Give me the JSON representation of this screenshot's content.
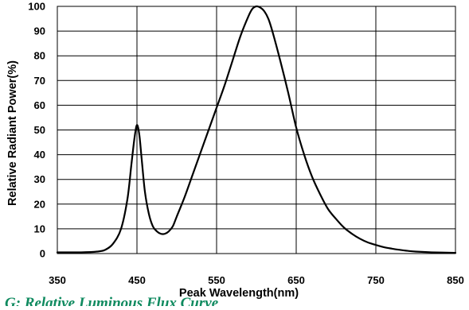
{
  "chart_data": {
    "type": "line",
    "title": "",
    "xlabel": "Peak Wavelength(nm)",
    "ylabel": "Relative Radiant Power(%)",
    "xlim": [
      350,
      850
    ],
    "ylim": [
      0,
      100
    ],
    "x_ticks": [
      "350",
      "450",
      "550",
      "650",
      "750",
      "850"
    ],
    "y_ticks": [
      "0",
      "10",
      "20",
      "30",
      "40",
      "50",
      "60",
      "70",
      "80",
      "90",
      "100"
    ],
    "grid": true,
    "legend": "none",
    "line_color": "#000000",
    "series": [
      {
        "x": [
          350,
          380,
          400,
          410,
          420,
          430,
          438,
          443,
          447,
          450,
          453,
          456,
          460,
          465,
          470,
          475,
          480,
          485,
          490,
          495,
          500,
          510,
          520,
          530,
          540,
          550,
          560,
          570,
          580,
          590,
          595,
          600,
          605,
          610,
          615,
          620,
          630,
          640,
          650,
          660,
          670,
          680,
          690,
          700,
          710,
          720,
          730,
          740,
          750,
          760,
          770,
          780,
          790,
          800,
          820,
          850
        ],
        "y": [
          0.5,
          0.5,
          0.8,
          1.5,
          4,
          10,
          22,
          36,
          47,
          52,
          48,
          38,
          25,
          16,
          11,
          9,
          8,
          8,
          9,
          11,
          15,
          23,
          32,
          41,
          50,
          59,
          68,
          78,
          88,
          96,
          99,
          100,
          99.5,
          98,
          95,
          90,
          78,
          65,
          51,
          40,
          31,
          24,
          18,
          14,
          10.5,
          8,
          6,
          4.5,
          3.5,
          2.6,
          2,
          1.5,
          1.1,
          0.8,
          0.5,
          0.3
        ]
      }
    ]
  },
  "caption_fragment": "G: Relative Luminous Flux Curve"
}
